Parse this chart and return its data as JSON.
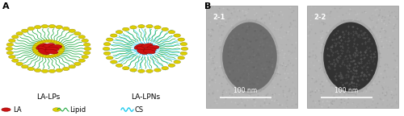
{
  "fig_width": 5.0,
  "fig_height": 1.44,
  "dpi": 100,
  "label_A": "A",
  "label_B": "B",
  "bg_color": "#ffffff",
  "color_lipid_head": "#ddd000",
  "color_lipid_tail": "#22aa44",
  "color_la": "#cc1111",
  "color_cs": "#22ccee",
  "la_lps_label": "LA-LPs",
  "la_lpns_label": "LA-LPNs",
  "legend_la_label": "LA",
  "legend_lipid_label": "Lipid",
  "legend_cs_label": "CS",
  "tem_label1": "2-1",
  "tem_label2": "2-2",
  "scale_bar_label": "100 nm",
  "tem_bg": "#b5b5b5",
  "tem1_particle": "#686868",
  "tem2_particle": "#282828",
  "font_size_AB": 8,
  "font_size_legend": 6,
  "font_size_tem": 6
}
